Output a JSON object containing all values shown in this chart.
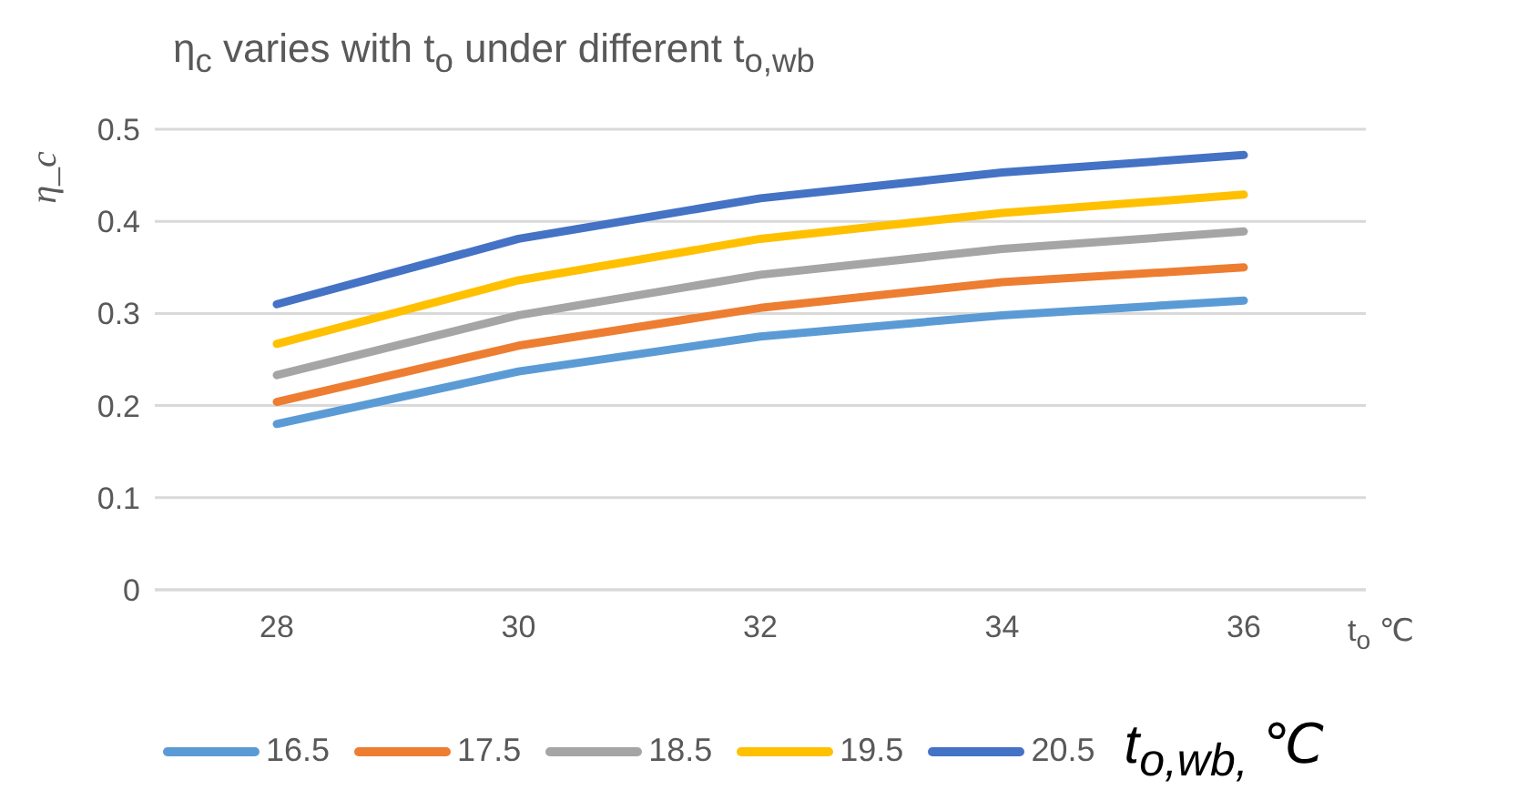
{
  "chart_data": {
    "type": "line",
    "title": "η$_{c}$ varies with t$_{o}$ under different t$_{o,wb}$",
    "xlabel": "t$_{o}$  ℃",
    "ylabel": "η_c",
    "legend_title": "t$_{o,wb,}$ ℃",
    "categories": [
      "28",
      "30",
      "32",
      "34",
      "36"
    ],
    "series": [
      {
        "name": "16.5",
        "color": "#5b9bd5",
        "values": [
          0.18,
          0.237,
          0.275,
          0.298,
          0.314
        ]
      },
      {
        "name": "17.5",
        "color": "#ed7d31",
        "values": [
          0.204,
          0.265,
          0.306,
          0.334,
          0.35
        ]
      },
      {
        "name": "18.5",
        "color": "#a5a5a5",
        "values": [
          0.233,
          0.298,
          0.342,
          0.37,
          0.389
        ]
      },
      {
        "name": "19.5",
        "color": "#ffc000",
        "values": [
          0.267,
          0.336,
          0.381,
          0.409,
          0.429
        ]
      },
      {
        "name": "20.5",
        "color": "#4472c4",
        "values": [
          0.31,
          0.381,
          0.425,
          0.453,
          0.472
        ]
      }
    ],
    "ylim": [
      0,
      0.5
    ],
    "yticks": [
      0,
      0.1,
      0.2,
      0.3,
      0.4,
      0.5
    ],
    "grid": "y",
    "legend": "bottom",
    "marker": "none",
    "line_style": "solid"
  }
}
